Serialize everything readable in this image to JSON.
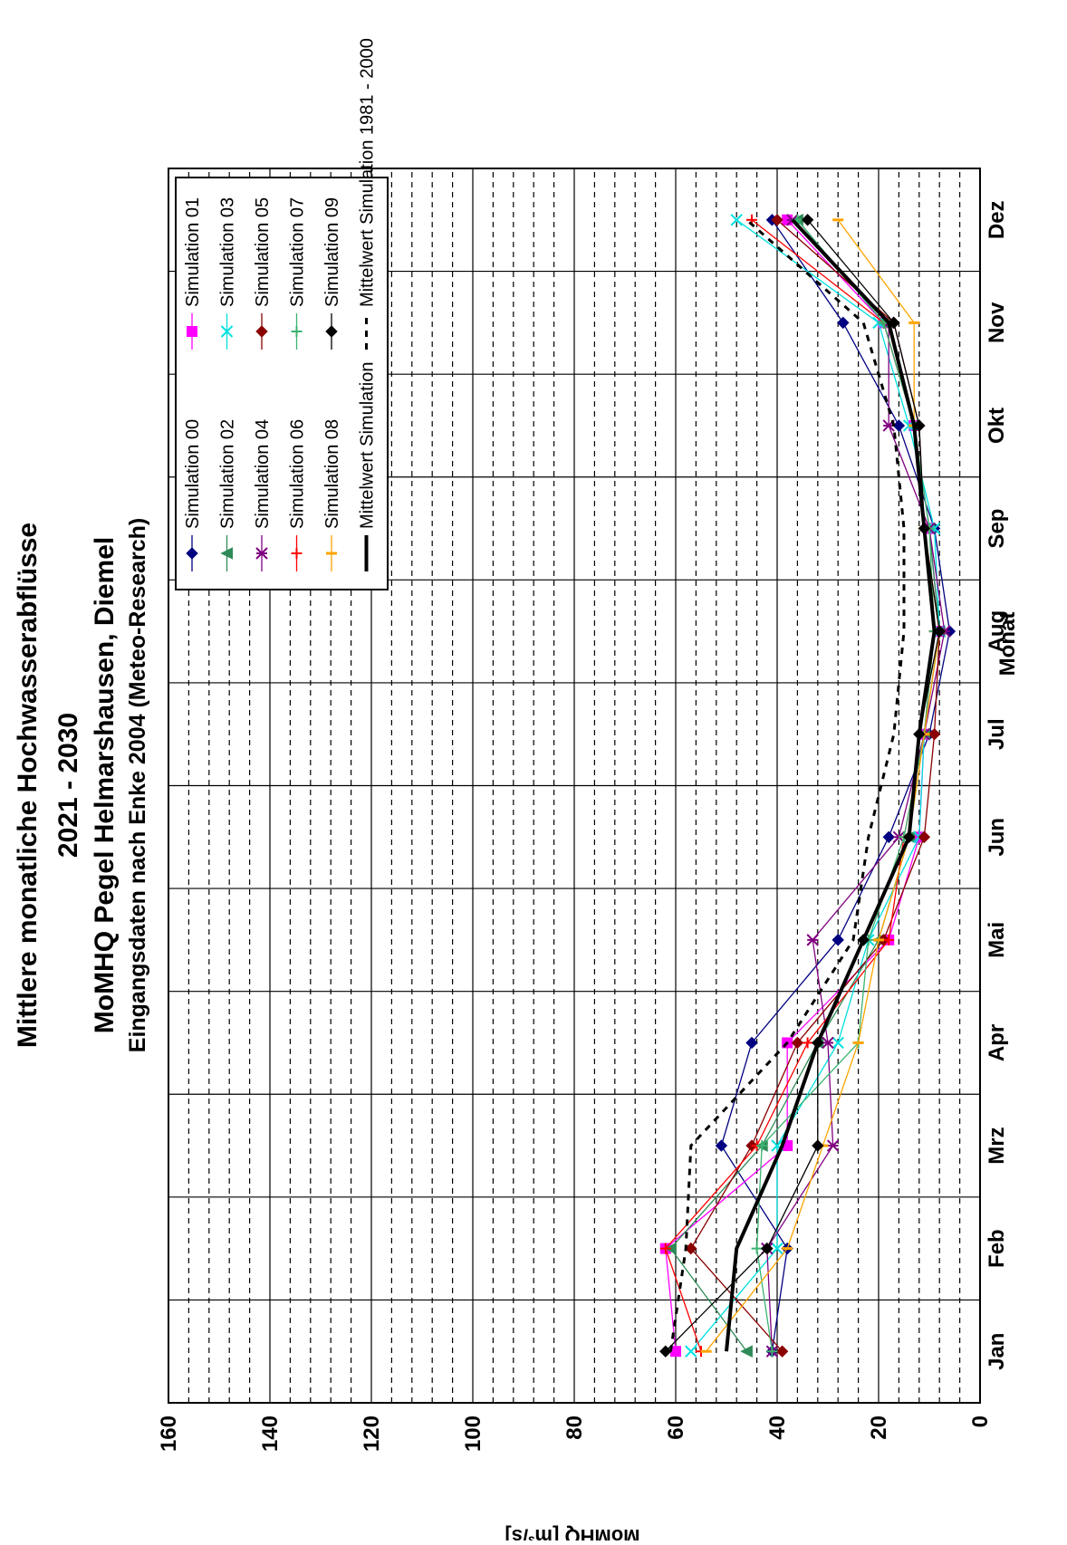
{
  "chart_data": {
    "type": "line",
    "title_lines": [
      "Mittlere monatliche Hochwasserabflüsse",
      "2021 - 2030",
      "MoMHQ Pegel Helmarshausen, Diemel",
      "Eingangsdaten nach Enke 2004 (Meteo-Research)"
    ],
    "xlabel": "Monat",
    "ylabel": "MoMHQ [m³/s]",
    "categories": [
      "Jan",
      "Feb",
      "Mrz",
      "Apr",
      "Mai",
      "Jun",
      "Jul",
      "Aug",
      "Sep",
      "Okt",
      "Nov",
      "Dez"
    ],
    "ylim": [
      0,
      160
    ],
    "yticks": [
      0,
      20,
      40,
      60,
      80,
      100,
      120,
      140,
      160
    ],
    "grid": true,
    "legend_position": "top-right",
    "series": [
      {
        "name": "Simulation 00",
        "color": "#000080",
        "marker": "diamond",
        "values": [
          41,
          38,
          51,
          45,
          28,
          18,
          10,
          6,
          9,
          16,
          27,
          41
        ]
      },
      {
        "name": "Simulation 01",
        "color": "#ff00ff",
        "marker": "square",
        "values": [
          60,
          62,
          38,
          38,
          18,
          12,
          11,
          8,
          10,
          13,
          19,
          38
        ]
      },
      {
        "name": "Simulation 02",
        "color": "#2e8b57",
        "marker": "triangle",
        "values": [
          46,
          61,
          43,
          32,
          20,
          14,
          11,
          8,
          10,
          13,
          19,
          36
        ]
      },
      {
        "name": "Simulation 03",
        "color": "#00e0e0",
        "marker": "x",
        "values": [
          57,
          40,
          40,
          28,
          22,
          12,
          11,
          8,
          9,
          14,
          20,
          48
        ]
      },
      {
        "name": "Simulation 04",
        "color": "#800080",
        "marker": "star",
        "values": [
          41,
          42,
          29,
          30,
          33,
          16,
          11,
          7,
          10,
          18,
          18,
          37
        ]
      },
      {
        "name": "Simulation 05",
        "color": "#8b0000",
        "marker": "diamond",
        "values": [
          39,
          57,
          45,
          36,
          19,
          11,
          9,
          8,
          11,
          12,
          17,
          40
        ]
      },
      {
        "name": "Simulation 06",
        "color": "#ff0000",
        "marker": "plus",
        "values": [
          55,
          62,
          44,
          34,
          18,
          15,
          11,
          9,
          11,
          13,
          19,
          45
        ]
      },
      {
        "name": "Simulation 07",
        "color": "#3cb371",
        "marker": "plus",
        "values": [
          41,
          44,
          43,
          24,
          22,
          15,
          11,
          9,
          10,
          13,
          19,
          36
        ]
      },
      {
        "name": "Simulation 08",
        "color": "#ffa500",
        "marker": "dash",
        "values": [
          54,
          38,
          31,
          24,
          20,
          14,
          11,
          8,
          11,
          13,
          13,
          28
        ]
      },
      {
        "name": "Simulation 09",
        "color": "#000000",
        "marker": "diamond",
        "values": [
          62,
          42,
          32,
          32,
          23,
          14,
          12,
          8,
          11,
          12,
          17,
          34
        ]
      },
      {
        "name": "Mittelwert  Simulation",
        "color": "#000000",
        "marker": "none",
        "style": "bold",
        "values": [
          50,
          48,
          39,
          32,
          23,
          14,
          12,
          9,
          11,
          13,
          18,
          37
        ]
      },
      {
        "name": "Mittelwert  Simulation 1981 - 2000",
        "color": "#000000",
        "marker": "none",
        "style": "dashed",
        "values": [
          61,
          58,
          57,
          38,
          25,
          22,
          17,
          15,
          15,
          17,
          23,
          46
        ]
      }
    ]
  }
}
